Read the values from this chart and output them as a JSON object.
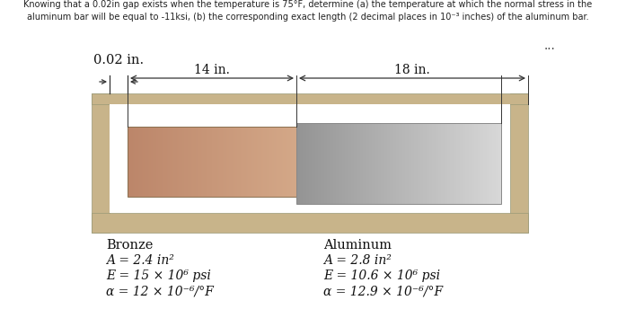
{
  "title_line1": "Knowing that a 0.02in gap exists when the temperature is 75°F, determine (a) the temperature at which the normal stress in the",
  "title_line2": "aluminum bar will be equal to -11ksi, (b) the corresponding exact length (2 decimal places in 10⁻³ inches) of the aluminum bar.",
  "gap_label": "0.02 in.",
  "dim_bronze": "14 in.",
  "dim_aluminum": "18 in.",
  "ellipsis": "...",
  "bronze_label": "Bronze",
  "bronze_A": "A = 2.4 in²",
  "bronze_E": "E = 15 × 10⁶ psi",
  "bronze_alpha": "α = 12 × 10⁻⁶/°F",
  "aluminum_label": "Aluminum",
  "aluminum_A": "A = 2.8 in²",
  "aluminum_E": "E = 10.6 × 10⁶ psi",
  "aluminum_alpha": "α = 12.9 × 10⁻⁶/°F",
  "wall_color": "#c8b48a",
  "background_color": "#ffffff",
  "text_color": "#222222"
}
